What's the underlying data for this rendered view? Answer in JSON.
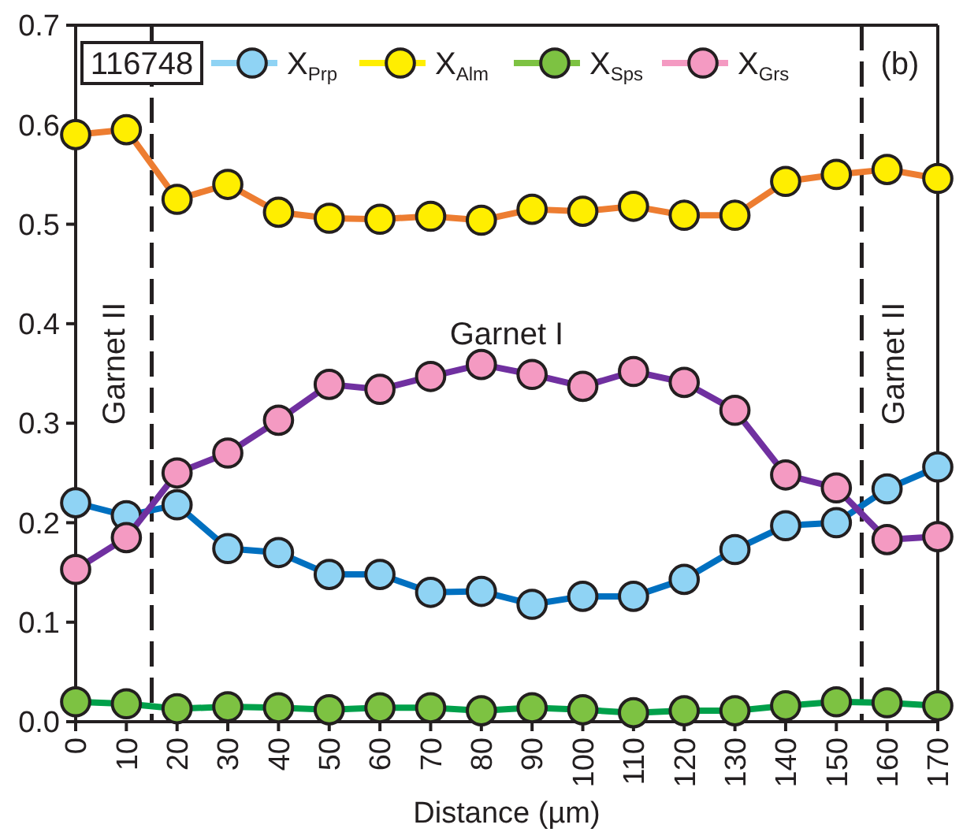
{
  "chart_data": {
    "type": "line",
    "xlabel": "Distance (µm)",
    "x": [
      0,
      10,
      20,
      30,
      40,
      50,
      60,
      70,
      80,
      90,
      100,
      110,
      120,
      130,
      140,
      150,
      160,
      170
    ],
    "series": [
      {
        "name": "X$_{Prp}$",
        "color": "#0070c0",
        "colors": [
          "#8fd3f4",
          "#8fd3f4",
          "#8fd3f4",
          "#8fd3f4",
          "#8fd3f4",
          "#8fd3f4",
          "#8fd3f4",
          "#8fd3f4",
          "#8fd3f4",
          "#8fd3f4",
          "#8fd3f4",
          "#8fd3f4",
          "#8fd3f4",
          "#8fd3f4",
          "#8fd3f4",
          "#8fd3f4",
          "#8fd3f4",
          "#8fd3f4"
        ],
        "values": [
          0.22,
          0.207,
          0.218,
          0.174,
          0.17,
          0.148,
          0.148,
          0.13,
          0.131,
          0.118,
          0.126,
          0.126,
          0.143,
          0.173,
          0.197,
          0.2,
          0.234,
          0.256
        ]
      },
      {
        "name": "X$_{Alm}$",
        "color": "#ed7d31",
        "colors": [
          "#ffee00",
          "#ffee00",
          "#ffee00",
          "#ffee00",
          "#ffee00",
          "#ffee00",
          "#ffee00",
          "#ffee00",
          "#ffee00",
          "#ffee00",
          "#ffee00",
          "#ffee00",
          "#ffee00",
          "#ffee00",
          "#ffee00",
          "#ffee00",
          "#ffee00",
          "#ffee00"
        ],
        "values": [
          0.59,
          0.595,
          0.525,
          0.54,
          0.512,
          0.506,
          0.505,
          0.508,
          0.504,
          0.515,
          0.513,
          0.518,
          0.509,
          0.509,
          0.543,
          0.55,
          0.555,
          0.546
        ]
      },
      {
        "name": "X$_{Sps}$",
        "color": "#00a04a",
        "colors": [
          "#7dc242",
          "#7dc242",
          "#7dc242",
          "#7dc242",
          "#7dc242",
          "#7dc242",
          "#7dc242",
          "#7dc242",
          "#7dc242",
          "#7dc242",
          "#7dc242",
          "#7dc242",
          "#7dc242",
          "#7dc242",
          "#7dc242",
          "#7dc242",
          "#7dc242",
          "#7dc242"
        ],
        "values": [
          0.02,
          0.018,
          0.013,
          0.015,
          0.014,
          0.012,
          0.014,
          0.014,
          0.011,
          0.014,
          0.012,
          0.009,
          0.011,
          0.011,
          0.016,
          0.02,
          0.019,
          0.016
        ]
      },
      {
        "name": "X$_{Grs}$",
        "color": "#7030a0",
        "colors": [
          "#f49ac2",
          "#f49ac2",
          "#f49ac2",
          "#f49ac2",
          "#f49ac2",
          "#f49ac2",
          "#f49ac2",
          "#f49ac2",
          "#f49ac2",
          "#f49ac2",
          "#f49ac2",
          "#f49ac2",
          "#f49ac2",
          "#f49ac2",
          "#f49ac2",
          "#f49ac2",
          "#f49ac2",
          "#f49ac2"
        ],
        "values": [
          0.153,
          0.185,
          0.25,
          0.27,
          0.303,
          0.339,
          0.334,
          0.347,
          0.359,
          0.349,
          0.337,
          0.352,
          0.341,
          0.313,
          0.248,
          0.235,
          0.183,
          0.186
        ]
      }
    ],
    "xlim": [
      0,
      170
    ],
    "xticks": [
      0,
      10,
      20,
      30,
      40,
      50,
      60,
      70,
      80,
      90,
      100,
      110,
      120,
      130,
      140,
      150,
      160,
      170
    ],
    "ylim": [
      0,
      0.7
    ],
    "yticks": [
      {
        "value": 0,
        "label": "0.0"
      },
      {
        "value": 0.1,
        "label": "0.1"
      },
      {
        "value": 0.2,
        "label": "0.2"
      },
      {
        "value": 0.3,
        "label": "0.3"
      },
      {
        "value": 0.4,
        "label": "0.4"
      },
      {
        "value": 0.5,
        "label": "0.5"
      },
      {
        "value": 0.6,
        "label": "0.6"
      },
      {
        "value": 0.7,
        "label": "0.7"
      }
    ],
    "ref_lines": [
      {
        "axis": "x",
        "value": 15,
        "label": "Garnet II",
        "line_style": "dashed",
        "color": "#231f20"
      },
      {
        "axis": "x",
        "value": 155,
        "label": "Garnet II",
        "line_style": "dashed",
        "color": "#231f20"
      }
    ],
    "annotations": [
      "116748",
      "(b)",
      "Garnet I"
    ],
    "legend": "top",
    "marker": "circle",
    "line_style": "solid",
    "grid": false
  }
}
